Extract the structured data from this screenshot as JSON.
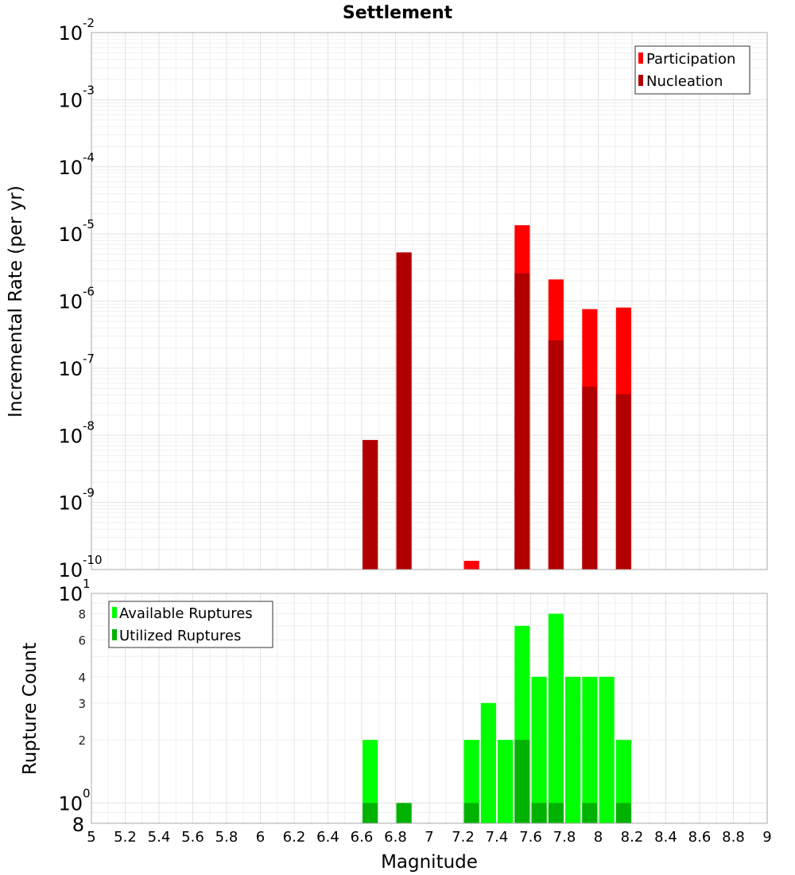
{
  "title": "Settlement",
  "chart_data": [
    {
      "type": "bar",
      "ylabel": "Incremental Rate (per yr)",
      "xlabel": "",
      "yscale": "log",
      "ylim": [
        1e-10,
        0.01
      ],
      "xlim": [
        5,
        9
      ],
      "y_tick_exponents": [
        "-10",
        "-9",
        "-8",
        "-7",
        "-6",
        "-5",
        "-4",
        "-3",
        "-2"
      ],
      "y_tick_base": "10",
      "legend": {
        "placement": "top-right"
      },
      "series": [
        {
          "name": "Participation",
          "color": "#ff0000",
          "points": [
            {
              "x": 6.65,
              "y": 8.5e-09
            },
            {
              "x": 6.85,
              "y": 5.3e-06
            },
            {
              "x": 7.25,
              "y": 1.35e-10
            },
            {
              "x": 7.55,
              "y": 1.35e-05
            },
            {
              "x": 7.75,
              "y": 2.1e-06
            },
            {
              "x": 7.95,
              "y": 7.6e-07
            },
            {
              "x": 8.15,
              "y": 8e-07
            }
          ]
        },
        {
          "name": "Nucleation",
          "color": "#b20000",
          "points": [
            {
              "x": 6.65,
              "y": 8.5e-09
            },
            {
              "x": 6.85,
              "y": 5.3e-06
            },
            {
              "x": 7.55,
              "y": 2.6e-06
            },
            {
              "x": 7.75,
              "y": 2.6e-07
            },
            {
              "x": 7.95,
              "y": 5.3e-08
            },
            {
              "x": 8.15,
              "y": 4.1e-08
            }
          ]
        }
      ]
    },
    {
      "type": "bar",
      "ylabel": "Rupture Count",
      "xlabel": "Magnitude",
      "yscale": "log",
      "ylim": [
        0.8,
        10
      ],
      "xlim": [
        5,
        9
      ],
      "x_ticks": [
        "5",
        "5.2",
        "5.4",
        "5.6",
        "5.8",
        "6",
        "6.2",
        "6.4",
        "6.6",
        "6.8",
        "7",
        "7.2",
        "7.4",
        "7.6",
        "7.8",
        "8",
        "8.2",
        "8.4",
        "8.6",
        "8.8",
        "9"
      ],
      "y_tick_base": "10",
      "y_tick_exponents": [
        "0",
        "1"
      ],
      "y_ticks_minor": [
        "2",
        "3",
        "4",
        "6",
        "8"
      ],
      "y_bottom_label": "8",
      "legend": {
        "placement": "top-left"
      },
      "series": [
        {
          "name": "Available Ruptures",
          "color": "#00ff00",
          "points": [
            {
              "x": 6.65,
              "y": 2
            },
            {
              "x": 6.85,
              "y": 1
            },
            {
              "x": 7.25,
              "y": 2
            },
            {
              "x": 7.35,
              "y": 3
            },
            {
              "x": 7.45,
              "y": 2
            },
            {
              "x": 7.55,
              "y": 7
            },
            {
              "x": 7.65,
              "y": 4
            },
            {
              "x": 7.75,
              "y": 8
            },
            {
              "x": 7.85,
              "y": 4
            },
            {
              "x": 7.95,
              "y": 4
            },
            {
              "x": 8.05,
              "y": 4
            },
            {
              "x": 8.15,
              "y": 2
            }
          ]
        },
        {
          "name": "Utilized Ruptures",
          "color": "#00b200",
          "points": [
            {
              "x": 6.65,
              "y": 1
            },
            {
              "x": 6.85,
              "y": 1
            },
            {
              "x": 7.25,
              "y": 1
            },
            {
              "x": 7.55,
              "y": 2
            },
            {
              "x": 7.65,
              "y": 1
            },
            {
              "x": 7.75,
              "y": 1
            },
            {
              "x": 7.95,
              "y": 1
            },
            {
              "x": 8.15,
              "y": 1
            }
          ]
        }
      ]
    }
  ]
}
